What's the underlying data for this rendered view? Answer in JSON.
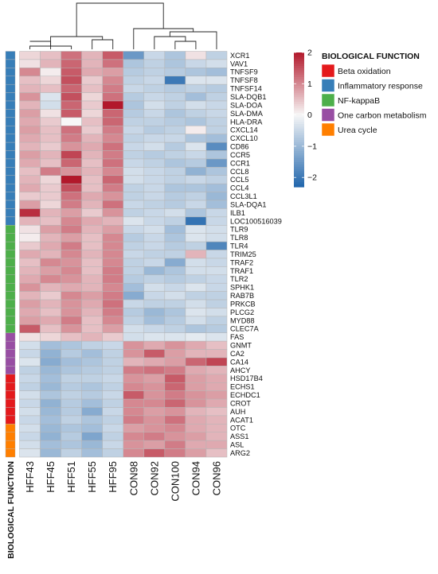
{
  "chart_data": {
    "type": "heatmap",
    "columns": [
      "HFF43",
      "HFF45",
      "HFF51",
      "HFF55",
      "HFF95",
      "CON98",
      "CON92",
      "CON100",
      "CON94",
      "CON96"
    ],
    "annotation_title": "BIOLOGICAL FUNCTION",
    "legend_title": "BIOLOGICAL FUNCTION",
    "groups": [
      {
        "name": "Beta oxidation",
        "color": "#e41a1c"
      },
      {
        "name": "Inflammatory response",
        "color": "#377eb8"
      },
      {
        "name": "NF-kappaB",
        "color": "#4daf4a"
      },
      {
        "name": "One carbon metabolism",
        "color": "#984ea3"
      },
      {
        "name": "Urea cycle",
        "color": "#ff7f00"
      }
    ],
    "color_scale": {
      "min": -2.3,
      "max": 2,
      "ticks": [
        2,
        1,
        0,
        -1,
        -2
      ],
      "low_color": "#2166ac",
      "mid_color": "#f7f7f7",
      "high_color": "#b2182b"
    },
    "dendrogram": {
      "left_cluster": [
        "HFF43",
        "HFF45",
        "HFF51",
        "HFF55",
        "HFF95"
      ],
      "right_cluster": [
        "CON98",
        "CON92",
        "CON100",
        "CON94",
        "CON96"
      ]
    },
    "rows": [
      {
        "gene": "XCR1",
        "group": 1,
        "values": [
          0.3,
          0.5,
          1.2,
          0.6,
          1.4,
          -1.5,
          -0.5,
          -0.8,
          0.2,
          -0.6
        ]
      },
      {
        "gene": "VAV1",
        "group": 1,
        "values": [
          0.2,
          0.6,
          1.3,
          0.6,
          1.2,
          -0.8,
          -0.6,
          -0.8,
          -0.5,
          -0.4
        ]
      },
      {
        "gene": "TNFSF9",
        "group": 1,
        "values": [
          1.0,
          0.1,
          1.4,
          0.7,
          0.8,
          -0.7,
          -0.6,
          -0.7,
          -0.8,
          -0.9
        ]
      },
      {
        "gene": "TNFSF8",
        "group": 1,
        "values": [
          0.5,
          0.3,
          1.5,
          0.4,
          1.0,
          -0.6,
          -0.5,
          -2.0,
          -0.3,
          -0.3
        ]
      },
      {
        "gene": "TNFSF14",
        "group": 1,
        "values": [
          0.6,
          0.5,
          1.3,
          0.5,
          1.1,
          -0.5,
          -0.6,
          -0.7,
          -0.6,
          -0.7
        ]
      },
      {
        "gene": "SLA-DQB1",
        "group": 1,
        "values": [
          0.9,
          -0.3,
          1.5,
          0.3,
          1.2,
          -0.7,
          -0.5,
          -0.6,
          -0.9,
          -0.6
        ]
      },
      {
        "gene": "SLA-DOA",
        "group": 1,
        "values": [
          0.6,
          -0.4,
          1.3,
          0.4,
          2.0,
          -0.8,
          -0.4,
          -0.6,
          -0.4,
          -0.5
        ]
      },
      {
        "gene": "SLA-DMA",
        "group": 1,
        "values": [
          0.8,
          0.2,
          1.4,
          0.3,
          1.3,
          -0.7,
          -0.5,
          -0.8,
          -0.6,
          -0.5
        ]
      },
      {
        "gene": "HLA-DRA",
        "group": 1,
        "values": [
          0.7,
          0.4,
          0.0,
          0.5,
          1.3,
          -0.6,
          -0.6,
          -0.7,
          -0.8,
          -0.6
        ]
      },
      {
        "gene": "CXCL14",
        "group": 1,
        "values": [
          0.8,
          0.5,
          1.2,
          0.4,
          1.1,
          -0.5,
          -0.7,
          -0.6,
          0.1,
          -0.6
        ]
      },
      {
        "gene": "CXCL10",
        "group": 1,
        "values": [
          0.7,
          0.5,
          1.1,
          0.6,
          1.0,
          -0.6,
          -0.5,
          -0.5,
          -0.8,
          -0.9
        ]
      },
      {
        "gene": "CD86",
        "group": 1,
        "values": [
          0.6,
          0.4,
          0.9,
          0.7,
          1.2,
          -0.5,
          -0.4,
          -0.7,
          -0.3,
          -1.7
        ]
      },
      {
        "gene": "CCR5",
        "group": 1,
        "values": [
          0.8,
          0.6,
          1.6,
          0.6,
          1.1,
          -0.6,
          -0.7,
          -0.6,
          -0.5,
          -0.8
        ]
      },
      {
        "gene": "CCR1",
        "group": 1,
        "values": [
          0.7,
          0.5,
          1.3,
          0.5,
          1.2,
          -0.5,
          -0.6,
          -0.8,
          -0.7,
          -1.5
        ]
      },
      {
        "gene": "CCL8",
        "group": 1,
        "values": [
          0.5,
          1.1,
          0.9,
          0.6,
          1.0,
          -0.4,
          -0.5,
          -0.6,
          -1.1,
          -0.8
        ]
      },
      {
        "gene": "CCL5",
        "group": 1,
        "values": [
          0.6,
          0.3,
          2.0,
          0.5,
          1.3,
          -0.4,
          -0.5,
          -0.6,
          -0.5,
          -0.6
        ]
      },
      {
        "gene": "CCL4",
        "group": 1,
        "values": [
          0.7,
          0.4,
          1.5,
          0.5,
          1.1,
          -0.6,
          -0.5,
          -0.8,
          -0.8,
          -0.9
        ]
      },
      {
        "gene": "CCL3L1",
        "group": 1,
        "values": [
          0.4,
          0.4,
          1.2,
          0.7,
          0.9,
          -0.6,
          -0.5,
          -0.7,
          -0.6,
          -1.0
        ]
      },
      {
        "gene": "SLA-DQA1",
        "group": 1,
        "values": [
          0.8,
          0.3,
          1.1,
          0.6,
          1.2,
          -0.5,
          -0.6,
          -0.7,
          -0.5,
          -0.9
        ]
      },
      {
        "gene": "ILB1",
        "group": 1,
        "values": [
          1.8,
          0.6,
          0.8,
          0.4,
          0.9,
          -0.6,
          -0.5,
          -0.4,
          -0.8,
          -0.5
        ]
      },
      {
        "gene": "LOC100516039",
        "group": 1,
        "values": [
          0.6,
          0.5,
          1.0,
          0.7,
          0.6,
          -0.3,
          -0.5,
          -0.6,
          -2.1,
          -0.5
        ]
      },
      {
        "gene": "TLR9",
        "group": 2,
        "values": [
          0.2,
          0.8,
          1.1,
          0.6,
          0.8,
          -0.5,
          -0.4,
          -0.9,
          -0.3,
          -0.4
        ]
      },
      {
        "gene": "TLR8",
        "group": 2,
        "values": [
          0.1,
          0.6,
          0.8,
          0.5,
          1.0,
          -0.7,
          -0.5,
          -0.8,
          -0.3,
          -0.4
        ]
      },
      {
        "gene": "TLR4",
        "group": 2,
        "values": [
          0.4,
          0.7,
          1.1,
          0.5,
          1.0,
          -0.6,
          -0.5,
          -0.7,
          -0.6,
          -1.8
        ]
      },
      {
        "gene": "TRIM25",
        "group": 2,
        "values": [
          0.7,
          0.6,
          1.0,
          0.6,
          1.0,
          -0.5,
          -0.6,
          -0.6,
          0.6,
          -0.5
        ]
      },
      {
        "gene": "TRAF2",
        "group": 2,
        "values": [
          0.5,
          1.0,
          0.9,
          0.5,
          1.0,
          -0.6,
          -0.5,
          -1.2,
          -0.4,
          -0.5
        ]
      },
      {
        "gene": "TRAF1",
        "group": 2,
        "values": [
          0.6,
          0.8,
          1.0,
          0.5,
          1.1,
          -0.6,
          -1.0,
          -0.8,
          -0.4,
          -0.4
        ]
      },
      {
        "gene": "TLR2",
        "group": 2,
        "values": [
          0.7,
          1.0,
          0.9,
          0.6,
          1.1,
          -0.7,
          -0.6,
          -0.7,
          -0.6,
          -0.5
        ]
      },
      {
        "gene": "SPHK1",
        "group": 2,
        "values": [
          0.9,
          0.6,
          0.7,
          0.6,
          1.0,
          -0.9,
          -0.4,
          -0.5,
          -0.3,
          -0.5
        ]
      },
      {
        "gene": "RAB7B",
        "group": 2,
        "values": [
          0.6,
          0.4,
          1.0,
          0.8,
          1.1,
          -1.2,
          -0.5,
          -0.4,
          -0.6,
          -0.6
        ]
      },
      {
        "gene": "PRKCB",
        "group": 2,
        "values": [
          0.8,
          0.6,
          0.9,
          0.7,
          1.2,
          -0.5,
          -0.6,
          -0.6,
          -0.4,
          -0.6
        ]
      },
      {
        "gene": "PLCG2",
        "group": 2,
        "values": [
          0.7,
          0.5,
          0.9,
          0.6,
          1.1,
          -0.7,
          -1.0,
          -0.8,
          -0.3,
          -0.4
        ]
      },
      {
        "gene": "MYD88",
        "group": 2,
        "values": [
          0.8,
          0.7,
          1.1,
          0.5,
          1.0,
          -0.6,
          -0.9,
          -0.7,
          -0.4,
          -0.6
        ]
      },
      {
        "gene": "CLEC7A",
        "group": 2,
        "values": [
          1.4,
          0.5,
          0.9,
          0.5,
          0.8,
          -0.4,
          -0.5,
          -0.6,
          -0.8,
          -0.7
        ]
      },
      {
        "gene": "FAS",
        "group": 3,
        "values": [
          0.2,
          0.3,
          0.5,
          0.6,
          0.4,
          -0.4,
          -0.3,
          -0.3,
          -0.2,
          -0.3
        ]
      },
      {
        "gene": "GNMT",
        "group": 3,
        "values": [
          -0.4,
          -0.9,
          -0.8,
          -0.6,
          -0.5,
          0.9,
          0.7,
          0.9,
          0.7,
          0.5
        ]
      },
      {
        "gene": "CA2",
        "group": 3,
        "values": [
          -0.5,
          -1.1,
          -0.7,
          -0.9,
          -0.6,
          0.9,
          1.4,
          0.8,
          0.6,
          0.6
        ]
      },
      {
        "gene": "CA14",
        "group": 3,
        "values": [
          -0.3,
          -1.2,
          -0.9,
          -0.8,
          -0.6,
          0.6,
          0.7,
          0.8,
          1.3,
          1.6
        ]
      },
      {
        "gene": "AHCY",
        "group": 3,
        "values": [
          -0.6,
          -1.0,
          -0.8,
          -0.7,
          -0.6,
          1.1,
          1.2,
          1.1,
          0.7,
          0.6
        ]
      },
      {
        "gene": "HSD17B4",
        "group": 0,
        "values": [
          -0.5,
          -0.9,
          -0.6,
          -0.6,
          -0.5,
          0.9,
          0.8,
          1.4,
          0.8,
          0.7
        ]
      },
      {
        "gene": "ECHS1",
        "group": 0,
        "values": [
          -0.6,
          -1.0,
          -0.7,
          -0.8,
          -0.6,
          1.0,
          0.9,
          1.3,
          0.8,
          0.7
        ]
      },
      {
        "gene": "ECHDC1",
        "group": 0,
        "values": [
          -0.4,
          -0.8,
          -0.6,
          -0.7,
          -0.5,
          1.4,
          0.9,
          1.1,
          0.9,
          0.8
        ]
      },
      {
        "gene": "CROT",
        "group": 0,
        "values": [
          -0.5,
          -1.1,
          -0.7,
          -0.9,
          -0.6,
          1.0,
          1.0,
          1.3,
          0.9,
          0.7
        ]
      },
      {
        "gene": "AUH",
        "group": 0,
        "values": [
          -0.4,
          -1.0,
          -0.7,
          -1.2,
          -0.5,
          1.0,
          0.8,
          0.9,
          0.6,
          0.5
        ]
      },
      {
        "gene": "ACAT1",
        "group": 0,
        "values": [
          -0.5,
          -0.9,
          -0.6,
          -0.8,
          -0.6,
          1.1,
          0.9,
          1.2,
          0.7,
          0.6
        ]
      },
      {
        "gene": "OTC",
        "group": 4,
        "values": [
          -0.4,
          -1.0,
          -0.8,
          -0.9,
          -0.5,
          0.8,
          0.9,
          1.0,
          0.7,
          0.6
        ]
      },
      {
        "gene": "ASS1",
        "group": 4,
        "values": [
          -0.5,
          -1.1,
          -0.7,
          -1.3,
          -0.6,
          1.0,
          1.1,
          0.9,
          0.8,
          0.6
        ]
      },
      {
        "gene": "ASL",
        "group": 4,
        "values": [
          -0.4,
          -0.9,
          -0.8,
          -1.0,
          -0.5,
          0.9,
          0.8,
          1.1,
          0.7,
          0.7
        ]
      },
      {
        "gene": "ARG2",
        "group": 4,
        "values": [
          -0.3,
          -1.0,
          -0.6,
          -0.9,
          -0.6,
          1.0,
          1.4,
          1.1,
          0.8,
          0.5
        ]
      }
    ]
  }
}
